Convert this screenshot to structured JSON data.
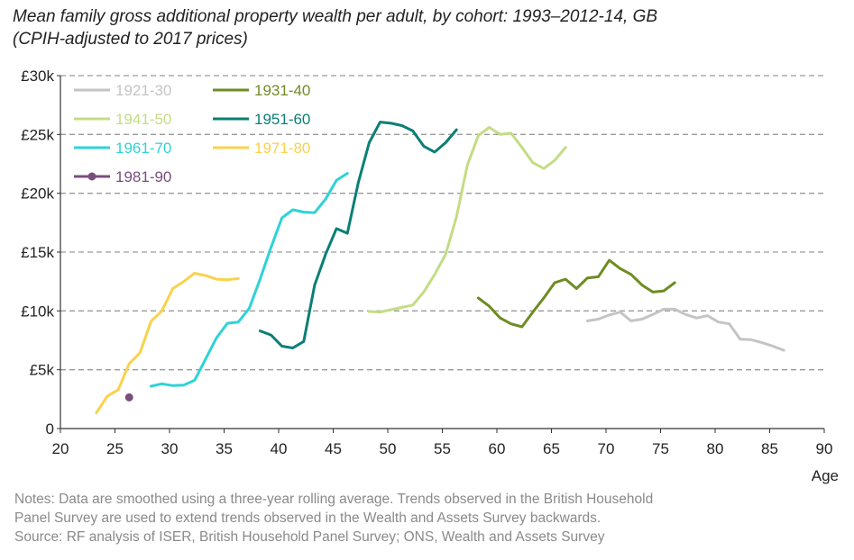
{
  "title": {
    "line1": "Mean family gross additional property wealth per adult, by cohort: 1993–2012-14, GB",
    "line2": "(CPIH-adjusted to 2017 prices)"
  },
  "notes": {
    "line1": "Notes: Data are smoothed using a three-year rolling average. Trends observed in the British Household",
    "line2": "Panel Survey are used to extend trends observed in the Wealth and Assets Survey backwards.",
    "line3": "Source: RF analysis of ISER, British Household Panel Survey; ONS, Wealth and Assets Survey"
  },
  "chart_data": {
    "type": "line",
    "title": "Mean family gross additional property wealth per adult, by cohort: 1993–2012-14, GB",
    "subtitle": "(CPIH-adjusted to 2017 prices)",
    "xlabel": "Age",
    "ylabel": "",
    "xlim": [
      20,
      90
    ],
    "ylim": [
      0,
      30000
    ],
    "x_ticks": [
      20,
      25,
      30,
      35,
      40,
      45,
      50,
      55,
      60,
      65,
      70,
      75,
      80,
      85,
      90
    ],
    "y_ticks": [
      0,
      5000,
      10000,
      15000,
      20000,
      25000,
      30000
    ],
    "y_tick_labels": [
      "0",
      "£5k",
      "£10k",
      "£15k",
      "£20k",
      "£25k",
      "£30k"
    ],
    "grid": "horizontal dashed",
    "legend_position": "top-left",
    "series": [
      {
        "name": "1921-30",
        "color": "#c4c4c4",
        "x": [
          68.3,
          69.3,
          70.3,
          71.3,
          72.3,
          73.3,
          74.3,
          75.3,
          76.3,
          77.3,
          78.3,
          79.3,
          80.3,
          81.3,
          82.3,
          83.3,
          84.3,
          85.3,
          86.3
        ],
        "y": [
          9150,
          9300,
          9650,
          9900,
          9150,
          9300,
          9700,
          10150,
          10150,
          9700,
          9400,
          9600,
          9050,
          8900,
          7600,
          7550,
          7300,
          7000,
          6650
        ]
      },
      {
        "name": "1931-40",
        "color": "#6e8c23",
        "x": [
          58.3,
          59.3,
          60.3,
          61.3,
          62.3,
          63.3,
          64.3,
          65.3,
          66.3,
          67.3,
          68.3,
          69.3,
          70.3,
          71.3,
          72.3,
          73.3,
          74.3,
          75.3,
          76.3
        ],
        "y": [
          11100,
          10400,
          9400,
          8900,
          8650,
          9900,
          11100,
          12400,
          12700,
          11900,
          12800,
          12900,
          14300,
          13600,
          13100,
          12200,
          11600,
          11700,
          12400
        ]
      },
      {
        "name": "1941-50",
        "color": "#c4dc84",
        "x": [
          48.3,
          49.3,
          50.3,
          51.3,
          52.3,
          53.3,
          54.3,
          55.3,
          56.3,
          57.3,
          58.3,
          59.3,
          60.3,
          61.3,
          62.3,
          63.3,
          64.3,
          65.3,
          66.3
        ],
        "y": [
          9950,
          9900,
          10100,
          10300,
          10500,
          11600,
          13100,
          14800,
          18000,
          22400,
          24900,
          25600,
          25000,
          25100,
          23900,
          22600,
          22100,
          22800,
          23900
        ]
      },
      {
        "name": "1951-60",
        "color": "#0a7f77",
        "x": [
          38.3,
          39.3,
          40.3,
          41.3,
          42.3,
          43.3,
          44.3,
          45.3,
          46.3,
          47.3,
          48.3,
          49.3,
          50.3,
          51.3,
          52.3,
          53.3,
          54.3,
          55.3,
          56.3
        ],
        "y": [
          8300,
          7950,
          7000,
          6850,
          7400,
          12200,
          14800,
          17000,
          16600,
          20900,
          24300,
          26050,
          25950,
          25750,
          25300,
          24000,
          23500,
          24300,
          25400
        ]
      },
      {
        "name": "1961-70",
        "color": "#2ed3d6",
        "x": [
          28.3,
          29.3,
          30.3,
          31.3,
          32.3,
          33.3,
          34.3,
          35.3,
          36.3,
          37.3,
          38.3,
          39.3,
          40.3,
          41.3,
          42.3,
          43.3,
          44.3,
          45.3,
          46.3
        ],
        "y": [
          3600,
          3800,
          3650,
          3700,
          4100,
          5900,
          7700,
          8950,
          9050,
          10200,
          12700,
          15400,
          17900,
          18600,
          18400,
          18350,
          19500,
          21100,
          21700
        ]
      },
      {
        "name": "1971-80",
        "color": "#f9d24c",
        "x": [
          23.3,
          24.3,
          25.3,
          26.3,
          27.3,
          28.3,
          29.3,
          30.3,
          31.3,
          32.3,
          33.3,
          34.3,
          35.3,
          36.3
        ],
        "y": [
          1350,
          2750,
          3300,
          5500,
          6450,
          9100,
          10000,
          11900,
          12500,
          13200,
          13000,
          12700,
          12650,
          12750
        ]
      },
      {
        "name": "1981-90",
        "color": "#7a4e7e",
        "marker": "circle",
        "x": [
          26.3
        ],
        "y": [
          2650
        ]
      }
    ]
  }
}
